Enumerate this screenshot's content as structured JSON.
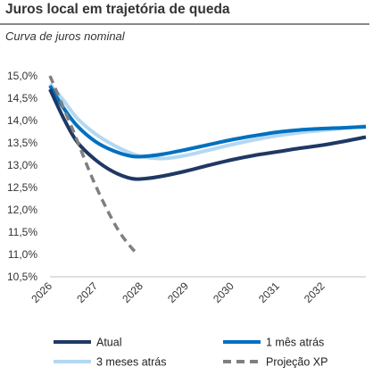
{
  "header": {
    "title": "Juros local em trajetória de queda",
    "subtitle": "Curva de juros nominal"
  },
  "chart_data": {
    "type": "line",
    "title": "Juros local em trajetória de queda",
    "subtitle": "Curva de juros nominal",
    "xlabel": "",
    "ylabel": "",
    "xlim": [
      2026,
      2032.95
    ],
    "ylim": [
      10.5,
      15.0
    ],
    "x_ticks": [
      "2026",
      "2027",
      "2028",
      "2029",
      "2030",
      "2031",
      "2032"
    ],
    "y_ticks": [
      "15,0%",
      "14,5%",
      "14,0%",
      "13,5%",
      "13,0%",
      "12,5%",
      "12,0%",
      "11,5%",
      "11,0%",
      "10,5%"
    ],
    "y_tick_values": [
      15.0,
      14.5,
      14.0,
      13.5,
      13.0,
      12.5,
      12.0,
      11.5,
      11.0,
      10.5
    ],
    "grid": false,
    "legend_position": "bottom",
    "series": [
      {
        "name": "Atual",
        "color": "#1f3864",
        "dash": "solid",
        "x": [
          2026.0,
          2026.3,
          2026.6,
          2027.0,
          2027.4,
          2027.8,
          2028.1,
          2028.5,
          2029.0,
          2029.5,
          2030.0,
          2030.5,
          2031.0,
          2031.5,
          2032.0,
          2032.5,
          2032.95
        ],
        "y": [
          14.7,
          14.05,
          13.52,
          13.12,
          12.85,
          12.7,
          12.7,
          12.76,
          12.87,
          13.0,
          13.12,
          13.22,
          13.3,
          13.38,
          13.45,
          13.54,
          13.63
        ]
      },
      {
        "name": "1 mês atrás",
        "color": "#0070c0",
        "dash": "solid",
        "x": [
          2026.0,
          2026.3,
          2026.6,
          2027.0,
          2027.4,
          2027.8,
          2028.1,
          2028.5,
          2029.0,
          2029.5,
          2030.0,
          2030.5,
          2031.0,
          2031.5,
          2032.0,
          2032.5,
          2032.95
        ],
        "y": [
          14.78,
          14.28,
          13.88,
          13.53,
          13.32,
          13.2,
          13.2,
          13.25,
          13.35,
          13.46,
          13.57,
          13.66,
          13.74,
          13.79,
          13.82,
          13.84,
          13.86
        ]
      },
      {
        "name": "3 meses atrás",
        "color": "#b4d8f2",
        "dash": "solid",
        "x": [
          2026.0,
          2026.3,
          2026.6,
          2027.0,
          2027.4,
          2027.8,
          2028.1,
          2028.5,
          2029.0,
          2029.5,
          2030.0,
          2030.5,
          2031.0,
          2031.5,
          2032.0,
          2032.5,
          2032.95
        ],
        "y": [
          14.82,
          14.45,
          14.05,
          13.7,
          13.45,
          13.26,
          13.18,
          13.15,
          13.22,
          13.34,
          13.46,
          13.57,
          13.66,
          13.73,
          13.78,
          13.83,
          13.88
        ]
      },
      {
        "name": "Projeção XP",
        "color": "#7f7f7f",
        "dash": "dashed",
        "x": [
          2026.0,
          2026.5,
          2027.0,
          2027.5,
          2027.92
        ],
        "y": [
          15.0,
          13.8,
          12.55,
          11.55,
          11.0
        ]
      }
    ]
  }
}
